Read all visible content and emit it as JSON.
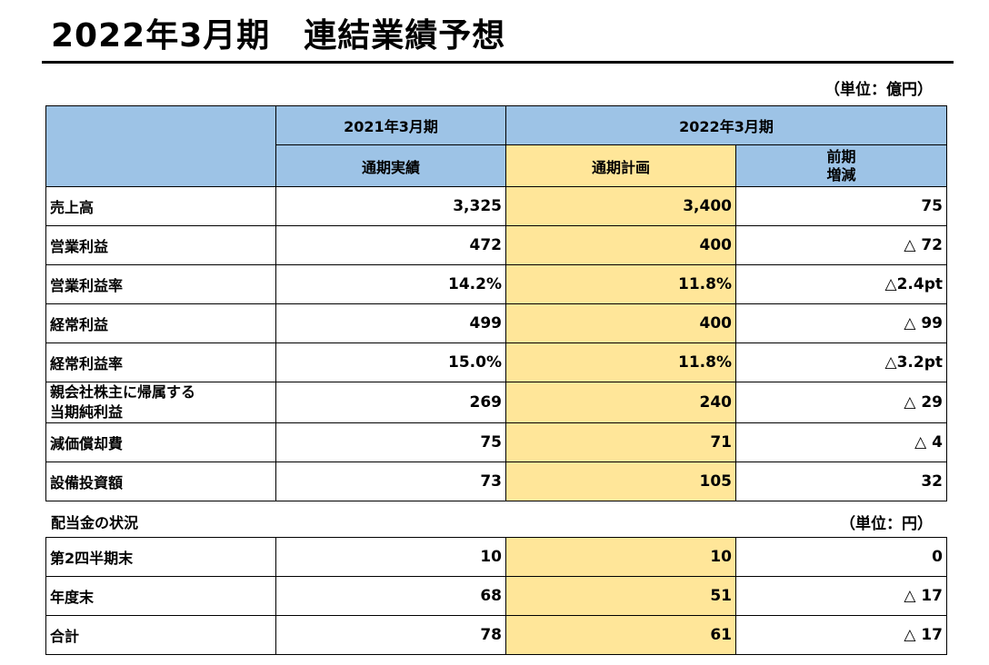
{
  "header": {
    "title": "2022年3月期　連結業績予想",
    "unit": "（単位：億円）"
  },
  "main_table": {
    "group_prev": "2021年3月期",
    "group_curr": "2022年3月期",
    "col_actual": "通期実績",
    "col_plan": "通期計画",
    "col_change_line1": "前期",
    "col_change_line2": "増減",
    "rows": [
      {
        "label": "売上高",
        "actual": "3,325",
        "plan": "3,400",
        "change": "75"
      },
      {
        "label": "営業利益",
        "actual": "472",
        "plan": "400",
        "change": "△ 72"
      },
      {
        "label": "営業利益率",
        "actual": "14.2%",
        "plan": "11.8%",
        "change": "△2.4pt"
      },
      {
        "label": "経常利益",
        "actual": "499",
        "plan": "400",
        "change": "△ 99"
      },
      {
        "label": "経常利益率",
        "actual": "15.0%",
        "plan": "11.8%",
        "change": "△3.2pt"
      },
      {
        "label_line1": "親会社株主に帰属する",
        "label_line2": "当期純利益",
        "actual": "269",
        "plan": "240",
        "change": "△ 29"
      },
      {
        "label": "減価償却費",
        "actual": "75",
        "plan": "71",
        "change": "△ 4"
      },
      {
        "label": "設備投資額",
        "actual": "73",
        "plan": "105",
        "change": "32"
      }
    ]
  },
  "dividend": {
    "section_label": "配当金の状況",
    "unit": "（単位：円）",
    "rows": [
      {
        "label": "第2四半期末",
        "actual": "10",
        "plan": "10",
        "change": "0"
      },
      {
        "label": "年度末",
        "actual": "68",
        "plan": "51",
        "change": "△ 17"
      },
      {
        "label": "合計",
        "actual": "78",
        "plan": "61",
        "change": "△ 17"
      }
    ]
  }
}
